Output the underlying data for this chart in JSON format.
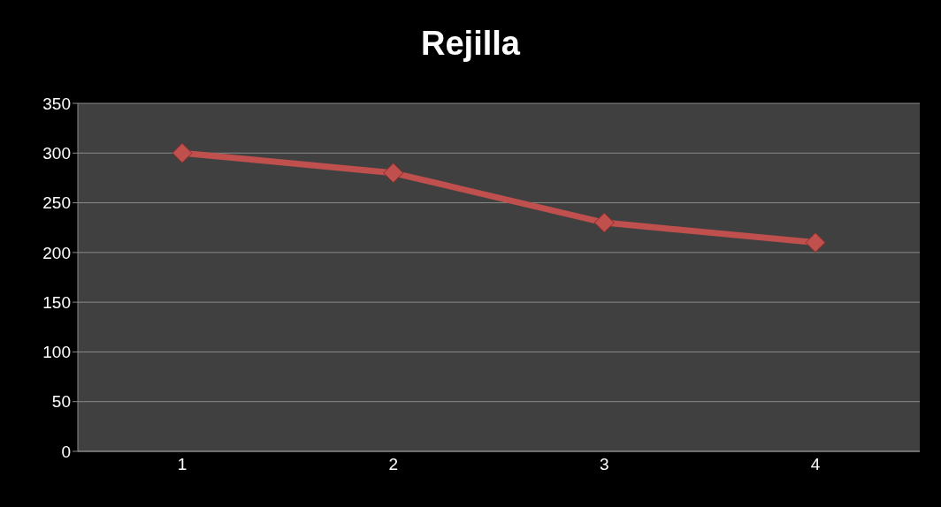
{
  "chart_data": {
    "type": "line",
    "title": "Rejilla",
    "categories": [
      "1",
      "2",
      "3",
      "4"
    ],
    "series": [
      {
        "color": "#c0504d",
        "values": [
          300,
          280,
          230,
          210
        ]
      }
    ],
    "ylim": [
      0,
      350
    ],
    "yticks": [
      0,
      50,
      100,
      150,
      200,
      250,
      300,
      350
    ],
    "grid": "y",
    "marker": "diamond",
    "line_style": "solid",
    "legend": false
  }
}
